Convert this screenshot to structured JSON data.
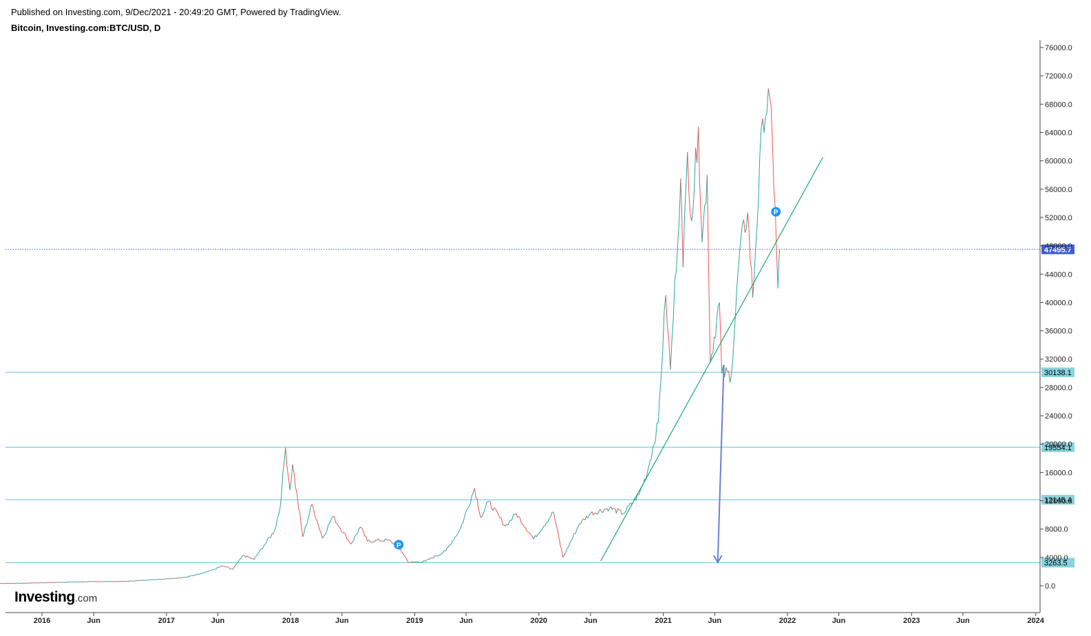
{
  "header": {
    "published": "Published on Investing.com, 9/Dec/2021 - 20:49:20 GMT, Powered by TradingView.",
    "symbol": "Bitcoin, Investing.com:BTC/USD, D"
  },
  "logo": {
    "main": "Investing",
    "suffix": ".com"
  },
  "colors": {
    "up": "#26a69a",
    "down": "#ef5350",
    "level": "#5fbdd0",
    "trend": "#1aa96b",
    "arrow": "#6a7fd0",
    "current": "#3d5fd6",
    "marker": "#2196f3"
  },
  "chart_data": {
    "type": "line",
    "title": "Bitcoin, Investing.com:BTC/USD, D",
    "xlabel": "",
    "ylabel": "",
    "ylim": [
      -4000,
      78000
    ],
    "xlim": [
      "2015-07-15",
      "2024-01-01"
    ],
    "grid": false,
    "y_ticks": [
      "76000.0",
      "72000.0",
      "68000.0",
      "64000.0",
      "60000.0",
      "56000.0",
      "52000.0",
      "48000.0",
      "44000.0",
      "40000.0",
      "36000.0",
      "32000.0",
      "28000.0",
      "24000.0",
      "20000.0",
      "16000.0",
      "12000.0",
      "8000.0",
      "4000.0",
      "0.0"
    ],
    "x_ticks": [
      {
        "date": "2016-01-01",
        "label": "2016"
      },
      {
        "date": "2016-06-01",
        "label": "Jun"
      },
      {
        "date": "2017-01-01",
        "label": "2017"
      },
      {
        "date": "2017-06-01",
        "label": "Jun"
      },
      {
        "date": "2018-01-01",
        "label": "2018"
      },
      {
        "date": "2018-06-01",
        "label": "Jun"
      },
      {
        "date": "2019-01-01",
        "label": "2019"
      },
      {
        "date": "2019-06-01",
        "label": "Jun"
      },
      {
        "date": "2020-01-01",
        "label": "2020"
      },
      {
        "date": "2020-06-01",
        "label": "Jun"
      },
      {
        "date": "2021-01-01",
        "label": "2021"
      },
      {
        "date": "2021-06-01",
        "label": "Jun"
      },
      {
        "date": "2022-01-01",
        "label": "2022"
      },
      {
        "date": "2022-06-01",
        "label": "Jun"
      },
      {
        "date": "2023-01-01",
        "label": "2023"
      },
      {
        "date": "2023-06-01",
        "label": "Jun"
      },
      {
        "date": "2024-01-01",
        "label": "2024"
      }
    ],
    "series": [
      {
        "values": [
          [
            "2015-07-15",
            300
          ],
          [
            "2015-11-01",
            350
          ],
          [
            "2016-01-01",
            430
          ],
          [
            "2016-06-01",
            580
          ],
          [
            "2016-09-01",
            610
          ],
          [
            "2017-01-01",
            970
          ],
          [
            "2017-03-01",
            1200
          ],
          [
            "2017-05-15",
            2200
          ],
          [
            "2017-06-15",
            2800
          ],
          [
            "2017-07-15",
            2300
          ],
          [
            "2017-08-15",
            4300
          ],
          [
            "2017-09-15",
            3700
          ],
          [
            "2017-10-15",
            5700
          ],
          [
            "2017-11-15",
            7800
          ],
          [
            "2017-12-01",
            11000
          ],
          [
            "2017-12-17",
            19500
          ],
          [
            "2017-12-30",
            13500
          ],
          [
            "2018-01-07",
            17100
          ],
          [
            "2018-02-06",
            6900
          ],
          [
            "2018-03-05",
            11500
          ],
          [
            "2018-04-05",
            6700
          ],
          [
            "2018-05-05",
            9800
          ],
          [
            "2018-06-28",
            5900
          ],
          [
            "2018-07-25",
            8300
          ],
          [
            "2018-08-15",
            6300
          ],
          [
            "2018-10-15",
            6450
          ],
          [
            "2018-11-15",
            5500
          ],
          [
            "2018-12-15",
            3250
          ],
          [
            "2019-02-01",
            3450
          ],
          [
            "2019-04-02",
            4900
          ],
          [
            "2019-05-15",
            8000
          ],
          [
            "2019-06-26",
            13800
          ],
          [
            "2019-07-15",
            9600
          ],
          [
            "2019-08-06",
            11900
          ],
          [
            "2019-09-25",
            8400
          ],
          [
            "2019-10-26",
            10200
          ],
          [
            "2019-12-17",
            6600
          ],
          [
            "2020-02-13",
            10400
          ],
          [
            "2020-03-12",
            4000
          ],
          [
            "2020-04-30",
            8800
          ],
          [
            "2020-06-01",
            10200
          ],
          [
            "2020-07-27",
            11000
          ],
          [
            "2020-09-05",
            10200
          ],
          [
            "2020-10-21",
            12800
          ],
          [
            "2020-11-15",
            16000
          ],
          [
            "2020-12-17",
            23000
          ],
          [
            "2021-01-08",
            41000
          ],
          [
            "2021-01-22",
            30500
          ],
          [
            "2021-02-21",
            57500
          ],
          [
            "2021-02-28",
            45000
          ],
          [
            "2021-03-13",
            61200
          ],
          [
            "2021-03-25",
            51500
          ],
          [
            "2021-04-14",
            64800
          ],
          [
            "2021-04-25",
            48500
          ],
          [
            "2021-05-10",
            58000
          ],
          [
            "2021-05-19",
            31500
          ],
          [
            "2021-06-15",
            40000
          ],
          [
            "2021-06-22",
            30000
          ],
          [
            "2021-07-20",
            29800
          ],
          [
            "2021-08-14",
            47500
          ],
          [
            "2021-09-06",
            52700
          ],
          [
            "2021-09-21",
            40700
          ],
          [
            "2021-10-20",
            66000
          ],
          [
            "2021-11-10",
            69000
          ],
          [
            "2021-11-26",
            53500
          ],
          [
            "2021-12-04",
            42000
          ],
          [
            "2021-12-09",
            47495.7
          ]
        ]
      }
    ],
    "horizontal_levels": [
      "30138.1",
      "19554.1",
      "12145.4",
      "3263.5"
    ],
    "current_price": "47495.7",
    "trendline": [
      [
        "2020-07-01",
        3500
      ],
      [
        "2022-04-15",
        60500
      ]
    ],
    "arrow": {
      "from": [
        "2021-06-28",
        31200
      ],
      "to": [
        "2021-06-10",
        3300
      ]
    },
    "markers": [
      {
        "date": "2018-11-15",
        "value": 5800,
        "label": "P"
      },
      {
        "date": "2021-11-28",
        "value": 52800,
        "label": "P"
      }
    ]
  }
}
